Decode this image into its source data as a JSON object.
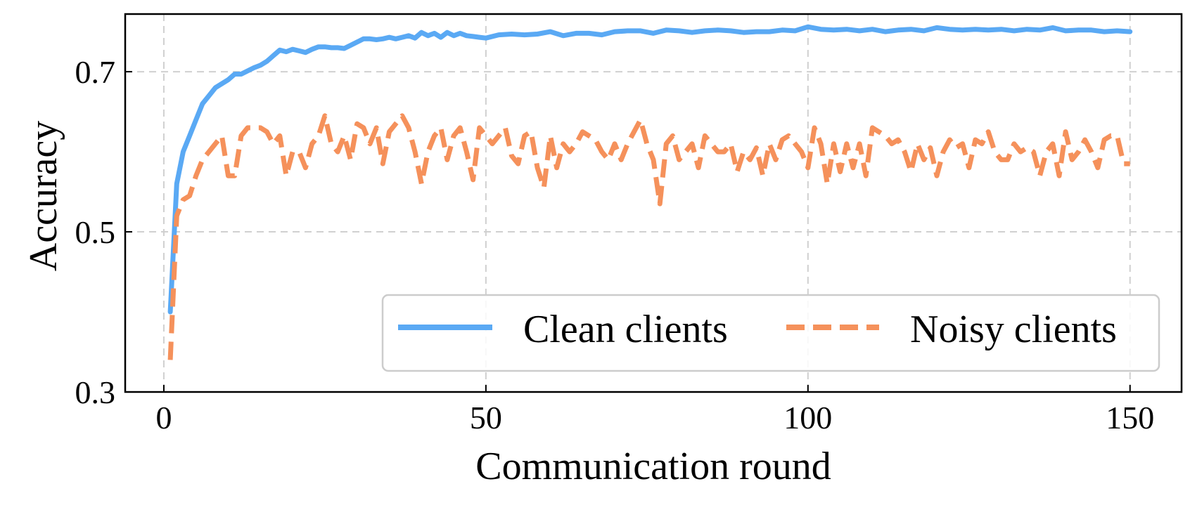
{
  "chart_data": {
    "type": "line",
    "title": "",
    "xlabel": "Communication round",
    "ylabel": "Accuracy",
    "xlim": [
      -6,
      158
    ],
    "ylim": [
      0.3,
      0.772
    ],
    "xticks": [
      0,
      50,
      100,
      150
    ],
    "yticks": [
      0.3,
      0.5,
      0.7
    ],
    "xtick_labels": [
      "0",
      "50",
      "100",
      "150"
    ],
    "ytick_labels": [
      "0.3",
      "0.5",
      "0.7"
    ],
    "grid": true,
    "legend_position": "bottom-right",
    "series": [
      {
        "name": "Clean clients",
        "color": "#5aa9f4",
        "style": "solid",
        "x": [
          1,
          2,
          3,
          4,
          5,
          6,
          7,
          8,
          10,
          11,
          12,
          14,
          15,
          16,
          17,
          18,
          19,
          20,
          21,
          22,
          23,
          24,
          25,
          26,
          27,
          28,
          29,
          30,
          31,
          32,
          33,
          34,
          35,
          36,
          37,
          38,
          39,
          40,
          41,
          42,
          43,
          44,
          45,
          46,
          47,
          48,
          49,
          50,
          52,
          54,
          56,
          58,
          60,
          62,
          64,
          66,
          68,
          70,
          72,
          74,
          76,
          78,
          80,
          82,
          84,
          86,
          88,
          90,
          92,
          94,
          96,
          98,
          100,
          102,
          104,
          106,
          108,
          110,
          112,
          114,
          116,
          118,
          120,
          122,
          124,
          126,
          128,
          130,
          132,
          134,
          136,
          138,
          140,
          142,
          144,
          146,
          148,
          150
        ],
        "values": [
          0.4,
          0.56,
          0.6,
          0.62,
          0.64,
          0.66,
          0.67,
          0.68,
          0.69,
          0.697,
          0.697,
          0.705,
          0.708,
          0.713,
          0.72,
          0.727,
          0.725,
          0.728,
          0.726,
          0.724,
          0.728,
          0.731,
          0.731,
          0.73,
          0.73,
          0.729,
          0.733,
          0.737,
          0.741,
          0.741,
          0.74,
          0.741,
          0.743,
          0.741,
          0.743,
          0.745,
          0.742,
          0.749,
          0.745,
          0.748,
          0.743,
          0.749,
          0.745,
          0.748,
          0.745,
          0.744,
          0.743,
          0.742,
          0.746,
          0.747,
          0.746,
          0.747,
          0.75,
          0.745,
          0.748,
          0.748,
          0.746,
          0.75,
          0.751,
          0.751,
          0.748,
          0.752,
          0.751,
          0.749,
          0.751,
          0.752,
          0.751,
          0.749,
          0.75,
          0.75,
          0.752,
          0.751,
          0.756,
          0.753,
          0.752,
          0.753,
          0.751,
          0.753,
          0.75,
          0.752,
          0.753,
          0.751,
          0.755,
          0.753,
          0.752,
          0.753,
          0.752,
          0.753,
          0.751,
          0.753,
          0.752,
          0.755,
          0.751,
          0.752,
          0.752,
          0.75,
          0.751,
          0.75
        ]
      },
      {
        "name": "Noisy clients",
        "color": "#f5915b",
        "style": "dashed",
        "x": [
          1,
          2,
          3,
          4,
          5,
          6,
          7,
          8,
          9,
          10,
          11,
          12,
          13,
          14,
          15,
          16,
          17,
          18,
          19,
          20,
          21,
          22,
          23,
          24,
          25,
          26,
          27,
          28,
          29,
          30,
          31,
          32,
          33,
          34,
          35,
          36,
          37,
          38,
          39,
          40,
          41,
          42,
          43,
          44,
          45,
          46,
          47,
          48,
          49,
          50,
          51,
          52,
          53,
          54,
          55,
          56,
          57,
          58,
          59,
          60,
          61,
          62,
          63,
          64,
          65,
          66,
          67,
          68,
          69,
          70,
          71,
          72,
          73,
          74,
          75,
          76,
          77,
          78,
          79,
          80,
          81,
          82,
          83,
          84,
          85,
          86,
          87,
          88,
          89,
          90,
          91,
          92,
          93,
          94,
          95,
          96,
          97,
          98,
          99,
          100,
          101,
          102,
          103,
          104,
          105,
          106,
          107,
          108,
          109,
          110,
          111,
          112,
          113,
          114,
          115,
          116,
          117,
          118,
          119,
          120,
          121,
          122,
          123,
          124,
          125,
          126,
          127,
          128,
          129,
          130,
          131,
          132,
          133,
          134,
          135,
          136,
          137,
          138,
          139,
          140,
          141,
          142,
          143,
          144,
          145,
          146,
          147,
          148,
          149,
          150
        ],
        "values": [
          0.34,
          0.52,
          0.54,
          0.545,
          0.57,
          0.59,
          0.6,
          0.61,
          0.62,
          0.57,
          0.57,
          0.62,
          0.63,
          0.63,
          0.63,
          0.625,
          0.61,
          0.62,
          0.57,
          0.6,
          0.6,
          0.58,
          0.61,
          0.62,
          0.645,
          0.61,
          0.6,
          0.62,
          0.59,
          0.635,
          0.63,
          0.61,
          0.63,
          0.585,
          0.625,
          0.635,
          0.645,
          0.63,
          0.6,
          0.56,
          0.6,
          0.62,
          0.63,
          0.59,
          0.62,
          0.63,
          0.6,
          0.565,
          0.63,
          0.62,
          0.61,
          0.62,
          0.63,
          0.595,
          0.585,
          0.62,
          0.625,
          0.58,
          0.555,
          0.62,
          0.58,
          0.61,
          0.6,
          0.61,
          0.625,
          0.62,
          0.615,
          0.6,
          0.59,
          0.61,
          0.59,
          0.61,
          0.625,
          0.64,
          0.61,
          0.59,
          0.535,
          0.61,
          0.62,
          0.59,
          0.6,
          0.61,
          0.58,
          0.62,
          0.61,
          0.6,
          0.6,
          0.61,
          0.575,
          0.6,
          0.59,
          0.605,
          0.57,
          0.61,
          0.59,
          0.615,
          0.62,
          0.61,
          0.6,
          0.58,
          0.63,
          0.61,
          0.56,
          0.61,
          0.575,
          0.61,
          0.58,
          0.61,
          0.57,
          0.63,
          0.625,
          0.62,
          0.61,
          0.615,
          0.6,
          0.575,
          0.61,
          0.59,
          0.605,
          0.57,
          0.6,
          0.615,
          0.605,
          0.61,
          0.58,
          0.615,
          0.61,
          0.625,
          0.6,
          0.59,
          0.59,
          0.61,
          0.6,
          0.605,
          0.6,
          0.57,
          0.6,
          0.61,
          0.57,
          0.625,
          0.59,
          0.6,
          0.615,
          0.6,
          0.58,
          0.615,
          0.62,
          0.62,
          0.585,
          0.585
        ]
      }
    ]
  }
}
